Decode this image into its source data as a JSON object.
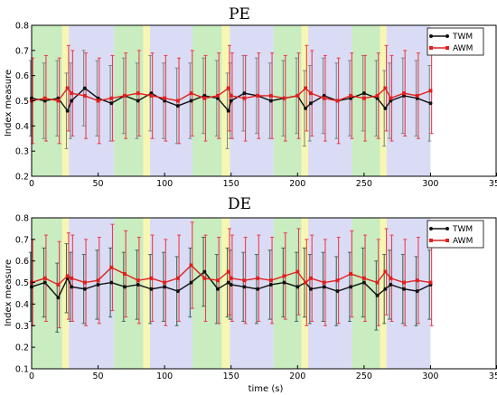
{
  "chart_data": [
    {
      "type": "line",
      "title": "PE",
      "xlabel": "",
      "ylabel": "Index measure",
      "xlim": [
        0,
        350
      ],
      "ylim": [
        0.2,
        0.8
      ],
      "xticks": [
        "0",
        "50",
        "100",
        "150",
        "200",
        "250",
        "300",
        "350"
      ],
      "yticks": [
        "0.2",
        "0.3",
        "0.4",
        "0.5",
        "0.6",
        "0.7",
        "0.8"
      ],
      "legend": {
        "position": "top-right",
        "entries": [
          "TWM",
          "AWM"
        ]
      },
      "bands": [
        {
          "from": 0,
          "to": 23,
          "color": "#c9ecc0"
        },
        {
          "from": 23,
          "to": 28,
          "color": "#f7f7b2"
        },
        {
          "from": 28,
          "to": 62,
          "color": "#d9dcf4"
        },
        {
          "from": 62,
          "to": 84,
          "color": "#c9ecc0"
        },
        {
          "from": 84,
          "to": 89,
          "color": "#f7f7b2"
        },
        {
          "from": 89,
          "to": 121,
          "color": "#d9dcf4"
        },
        {
          "from": 121,
          "to": 143,
          "color": "#c9ecc0"
        },
        {
          "from": 143,
          "to": 149,
          "color": "#f7f7b2"
        },
        {
          "from": 149,
          "to": 182,
          "color": "#d9dcf4"
        },
        {
          "from": 182,
          "to": 203,
          "color": "#c9ecc0"
        },
        {
          "from": 203,
          "to": 208,
          "color": "#f7f7b2"
        },
        {
          "from": 208,
          "to": 241,
          "color": "#d9dcf4"
        },
        {
          "from": 241,
          "to": 262,
          "color": "#c9ecc0"
        },
        {
          "from": 262,
          "to": 267,
          "color": "#f7f7b2"
        },
        {
          "from": 267,
          "to": 300,
          "color": "#d9dcf4"
        }
      ],
      "series": [
        {
          "name": "TWM",
          "color": "#111111",
          "err_color": "#7a8a8a",
          "x": [
            0,
            10,
            20,
            27,
            30,
            40,
            50,
            60,
            70,
            80,
            90,
            100,
            110,
            120,
            130,
            140,
            148,
            150,
            160,
            170,
            180,
            190,
            200,
            206,
            210,
            220,
            230,
            240,
            250,
            260,
            266,
            270,
            280,
            290,
            300
          ],
          "values": [
            0.51,
            0.5,
            0.51,
            0.46,
            0.5,
            0.55,
            0.51,
            0.49,
            0.52,
            0.5,
            0.53,
            0.5,
            0.48,
            0.5,
            0.52,
            0.51,
            0.46,
            0.5,
            0.53,
            0.52,
            0.5,
            0.51,
            0.52,
            0.47,
            0.49,
            0.52,
            0.5,
            0.51,
            0.53,
            0.51,
            0.47,
            0.5,
            0.52,
            0.51,
            0.49
          ],
          "err": 0.15
        },
        {
          "name": "AWM",
          "color": "#e02020",
          "err_color": "#ee3b4a",
          "x": [
            0,
            10,
            20,
            27,
            30,
            40,
            50,
            60,
            70,
            80,
            90,
            100,
            110,
            120,
            130,
            140,
            148,
            150,
            160,
            170,
            180,
            190,
            200,
            206,
            210,
            220,
            230,
            240,
            250,
            260,
            266,
            270,
            280,
            290,
            300
          ],
          "values": [
            0.5,
            0.51,
            0.5,
            0.55,
            0.53,
            0.52,
            0.5,
            0.51,
            0.52,
            0.53,
            0.52,
            0.51,
            0.5,
            0.53,
            0.51,
            0.52,
            0.55,
            0.52,
            0.51,
            0.52,
            0.52,
            0.51,
            0.52,
            0.55,
            0.53,
            0.51,
            0.5,
            0.52,
            0.51,
            0.52,
            0.55,
            0.51,
            0.53,
            0.52,
            0.54
          ],
          "err": 0.17
        }
      ]
    },
    {
      "type": "line",
      "title": "DE",
      "xlabel": "time (s)",
      "ylabel": "Index measure",
      "xlim": [
        0,
        350
      ],
      "ylim": [
        0.1,
        0.8
      ],
      "xticks": [
        "0",
        "50",
        "100",
        "150",
        "200",
        "250",
        "300",
        "350"
      ],
      "yticks": [
        "0.1",
        "0.2",
        "0.3",
        "0.4",
        "0.5",
        "0.6",
        "0.7",
        "0.8"
      ],
      "legend": {
        "position": "top-right",
        "entries": [
          "TWM",
          "AWM"
        ]
      },
      "bands": [
        {
          "from": 0,
          "to": 23,
          "color": "#c9ecc0"
        },
        {
          "from": 23,
          "to": 28,
          "color": "#f7f7b2"
        },
        {
          "from": 28,
          "to": 62,
          "color": "#d9dcf4"
        },
        {
          "from": 62,
          "to": 84,
          "color": "#c9ecc0"
        },
        {
          "from": 84,
          "to": 89,
          "color": "#f7f7b2"
        },
        {
          "from": 89,
          "to": 121,
          "color": "#d9dcf4"
        },
        {
          "from": 121,
          "to": 143,
          "color": "#c9ecc0"
        },
        {
          "from": 143,
          "to": 149,
          "color": "#f7f7b2"
        },
        {
          "from": 149,
          "to": 182,
          "color": "#d9dcf4"
        },
        {
          "from": 182,
          "to": 203,
          "color": "#c9ecc0"
        },
        {
          "from": 203,
          "to": 208,
          "color": "#f7f7b2"
        },
        {
          "from": 208,
          "to": 241,
          "color": "#d9dcf4"
        },
        {
          "from": 241,
          "to": 262,
          "color": "#c9ecc0"
        },
        {
          "from": 262,
          "to": 267,
          "color": "#f7f7b2"
        },
        {
          "from": 267,
          "to": 300,
          "color": "#d9dcf4"
        }
      ],
      "series": [
        {
          "name": "TWM",
          "color": "#111111",
          "err_color": "#3d6b5a",
          "x": [
            0,
            10,
            20,
            27,
            30,
            40,
            50,
            60,
            70,
            80,
            90,
            100,
            110,
            120,
            130,
            140,
            148,
            150,
            160,
            170,
            180,
            190,
            200,
            206,
            210,
            220,
            230,
            240,
            250,
            260,
            266,
            270,
            280,
            290,
            300
          ],
          "values": [
            0.48,
            0.5,
            0.43,
            0.52,
            0.48,
            0.47,
            0.49,
            0.5,
            0.48,
            0.49,
            0.47,
            0.48,
            0.46,
            0.5,
            0.55,
            0.47,
            0.5,
            0.49,
            0.48,
            0.47,
            0.49,
            0.5,
            0.48,
            0.5,
            0.47,
            0.48,
            0.46,
            0.48,
            0.5,
            0.44,
            0.47,
            0.49,
            0.47,
            0.46,
            0.49
          ],
          "err": 0.16
        },
        {
          "name": "AWM",
          "color": "#e02020",
          "err_color": "#ee3b4a",
          "x": [
            0,
            10,
            20,
            27,
            30,
            40,
            50,
            60,
            70,
            80,
            90,
            100,
            110,
            120,
            130,
            140,
            148,
            150,
            160,
            170,
            180,
            190,
            200,
            206,
            210,
            220,
            230,
            240,
            250,
            260,
            266,
            270,
            280,
            290,
            300
          ],
          "values": [
            0.5,
            0.52,
            0.49,
            0.53,
            0.52,
            0.5,
            0.51,
            0.57,
            0.54,
            0.51,
            0.52,
            0.5,
            0.52,
            0.58,
            0.52,
            0.51,
            0.55,
            0.52,
            0.51,
            0.52,
            0.51,
            0.53,
            0.55,
            0.5,
            0.52,
            0.5,
            0.51,
            0.54,
            0.52,
            0.5,
            0.55,
            0.52,
            0.5,
            0.51,
            0.5
          ],
          "err": 0.2
        }
      ]
    }
  ]
}
